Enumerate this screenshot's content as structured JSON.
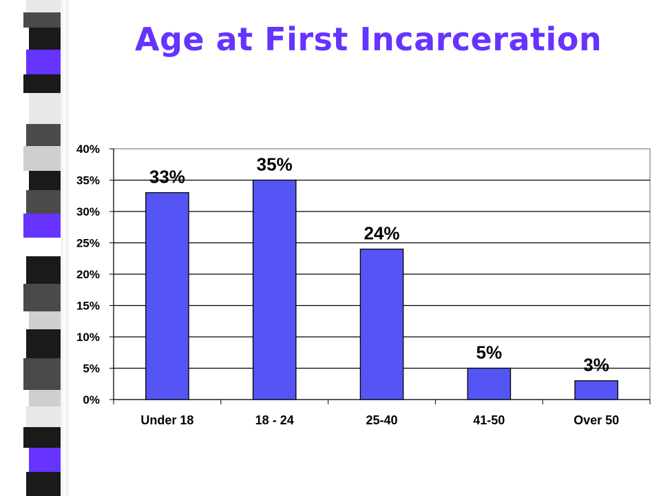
{
  "slide": {
    "title": "Age at First Incarceration",
    "title_color": "#6633ff",
    "accent_color": "#6633ff"
  },
  "chart_data": {
    "type": "bar",
    "title": "",
    "xlabel": "",
    "ylabel": "",
    "categories": [
      "Under 18",
      "18 - 24",
      "25-40",
      "41-50",
      "Over 50"
    ],
    "values": [
      33,
      35,
      24,
      5,
      3
    ],
    "data_labels": [
      "33%",
      "35%",
      "24%",
      "5%",
      "3%"
    ],
    "ylim": [
      0,
      40
    ],
    "yticks": [
      0,
      5,
      10,
      15,
      20,
      25,
      30,
      35,
      40
    ],
    "ytick_labels": [
      "0%",
      "5%",
      "10%",
      "15%",
      "20%",
      "25%",
      "30%",
      "35%",
      "40%"
    ],
    "grid": true,
    "legend": "none",
    "bar_color": "#5555f5",
    "bar_edge_color": "#000000"
  }
}
